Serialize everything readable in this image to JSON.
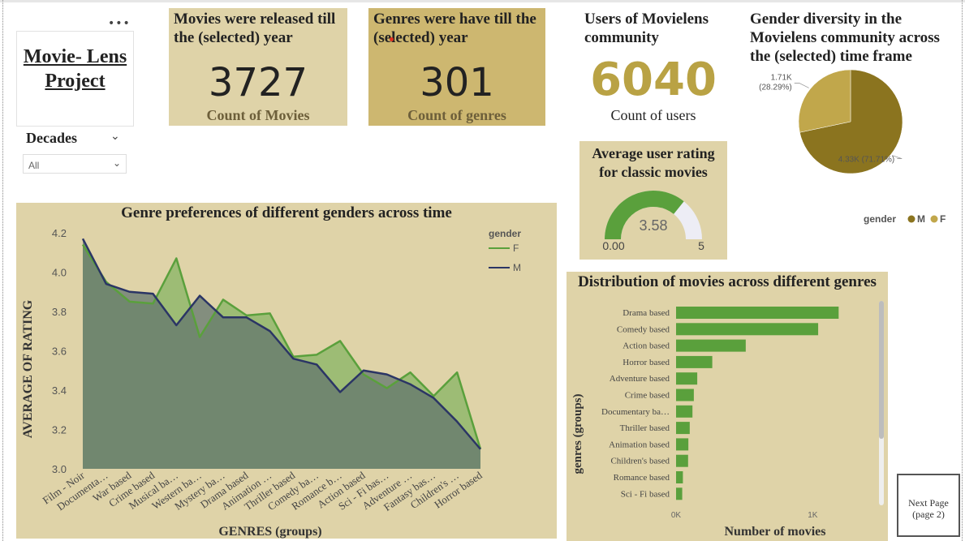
{
  "title": {
    "line1": "Movie- Lens",
    "line2": "Project",
    "more": "•••"
  },
  "decades": {
    "label": "Decades",
    "value": "All"
  },
  "kpis": {
    "movies": {
      "heading_line1": "Movies were released till",
      "heading_line2": "the (selected) year",
      "value": "3727",
      "caption": "Count of Movies"
    },
    "genres": {
      "heading_line1": "Genres were have till the",
      "heading_line2": "(selected) year",
      "value": "301",
      "caption": "Count of genres"
    },
    "users": {
      "heading_line1": "Users of Movielens",
      "heading_line2": "community",
      "value": "6040",
      "caption": "Count of users"
    }
  },
  "gauge": {
    "title_line1": "Average user rating",
    "title_line2": "for classic movies",
    "value": 3.58,
    "value_label": "3.58",
    "min_label": "0.00",
    "max_label": "5",
    "min": 0,
    "max": 5,
    "fill_color": "#5aa03c",
    "track_color": "#ededf5"
  },
  "pie": {
    "title_line1": "Gender diversity in the",
    "title_line2": "Movielens community across",
    "title_line3": "the (selected) time frame",
    "legend_title": "gender",
    "chart_data": {
      "type": "pie",
      "slices": [
        {
          "name": "M",
          "value": 4.33,
          "label_line1": "4.33K (71.71%)",
          "label_line2": "",
          "color": "#8b741f"
        },
        {
          "name": "F",
          "value": 1.71,
          "label_line1": "1.71K",
          "label_line2": "(28.29%)",
          "color": "#c1a74b"
        }
      ]
    }
  },
  "line": {
    "title": "Genre preferences of different genders across time",
    "xlabel": "GENRES (groups)",
    "ylabel": "AVERAGE OF RATING",
    "legend_title": "gender",
    "chart_data": {
      "type": "area",
      "categories": [
        "Film - Noir",
        "Documenta…",
        "War based",
        "Crime based",
        "Musical ba…",
        "Western ba…",
        "Mystery ba…",
        "Drama based",
        "Animation …",
        "Thriller based",
        "Comedy ba…",
        "Romance b…",
        "Action based",
        "Sci - Fi bas…",
        "Adventure …",
        "Fantasy bas…",
        "Children's …",
        "Horror based"
      ],
      "ylim": [
        3.0,
        4.2
      ],
      "yticks": [
        "3.0",
        "3.2",
        "3.4",
        "3.6",
        "3.8",
        "4.0",
        "4.2"
      ],
      "series": [
        {
          "name": "F",
          "color": "#5aa03c",
          "values": [
            4.14,
            3.95,
            3.85,
            3.84,
            4.07,
            3.67,
            3.86,
            3.78,
            3.79,
            3.57,
            3.58,
            3.65,
            3.48,
            3.41,
            3.49,
            3.37,
            3.49,
            3.1
          ]
        },
        {
          "name": "M",
          "color": "#2b3565",
          "values": [
            4.17,
            3.94,
            3.9,
            3.89,
            3.73,
            3.88,
            3.77,
            3.77,
            3.7,
            3.56,
            3.53,
            3.39,
            3.5,
            3.48,
            3.43,
            3.36,
            3.24,
            3.1
          ]
        }
      ]
    }
  },
  "bars": {
    "title": "Distribution of movies across different genres",
    "xlabel": "Number of movies",
    "ylabel": "genres (groups)",
    "chart_data": {
      "type": "bar",
      "categories": [
        "Drama based",
        "Comedy based",
        "Action based",
        "Horror based",
        "Adventure based",
        "Crime based",
        "Documentary ba…",
        "Thriller based",
        "Animation based",
        "Children's based",
        "Romance based",
        "Sci - Fi based"
      ],
      "values": [
        1190,
        1040,
        510,
        265,
        155,
        130,
        120,
        100,
        90,
        88,
        50,
        45
      ],
      "xlim": [
        0,
        1200
      ],
      "xticks": [
        {
          "v": 0,
          "label": "0K"
        },
        {
          "v": 1000,
          "label": "1K"
        }
      ],
      "color": "#5aa03c"
    }
  },
  "nav": {
    "next_line1": "Next Page",
    "next_line2": "(page 2)"
  }
}
